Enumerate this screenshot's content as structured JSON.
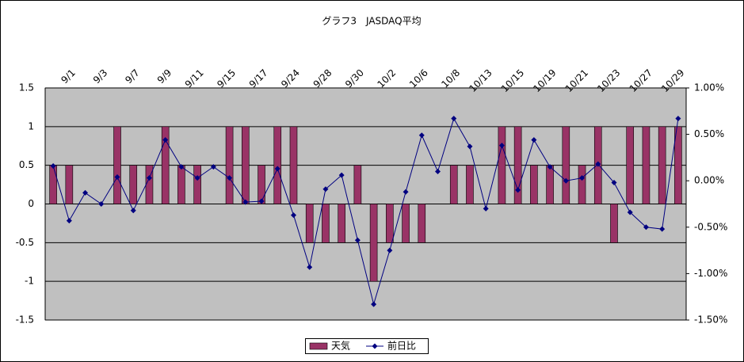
{
  "chart_data": {
    "type": "bar",
    "title": "グラフ3　JASDAQ平均",
    "categories": [
      null,
      "9/1",
      null,
      "9/3",
      null,
      "9/7",
      null,
      "9/9",
      null,
      "9/11",
      null,
      "9/15",
      null,
      "9/17",
      null,
      "9/24",
      null,
      "9/28",
      null,
      "9/30",
      null,
      "10/2",
      null,
      "10/6",
      null,
      "10/8",
      null,
      "10/13",
      null,
      "10/15",
      null,
      "10/19",
      null,
      "10/21",
      null,
      "10/23",
      null,
      "10/27",
      null,
      "10/29"
    ],
    "series": [
      {
        "name": "天気",
        "type": "bar",
        "axis": "y",
        "color": "#993366",
        "values": [
          0.5,
          0.5,
          0,
          0,
          1,
          0.5,
          0.5,
          1,
          0.5,
          0.5,
          0,
          1,
          1,
          0.5,
          1,
          1,
          -0.5,
          -0.5,
          -0.5,
          0.5,
          -1,
          -0.5,
          -0.5,
          -0.5,
          0,
          0.5,
          0.5,
          0,
          1,
          1,
          0.5,
          0.5,
          1,
          0.5,
          1,
          -0.5,
          1,
          1,
          1,
          1
        ]
      },
      {
        "name": "前日比",
        "type": "line",
        "axis": "y2",
        "color": "#000080",
        "values": [
          0.16,
          -0.43,
          -0.13,
          -0.25,
          0.04,
          -0.32,
          0.03,
          0.44,
          0.15,
          0.03,
          0.15,
          0.03,
          -0.23,
          -0.22,
          0.13,
          -0.37,
          -0.93,
          -0.09,
          0.06,
          -0.64,
          -1.33,
          -0.75,
          -0.12,
          0.49,
          0.1,
          0.67,
          0.37,
          -0.3,
          0.38,
          -0.1,
          0.44,
          0.15,
          0.0,
          0.03,
          0.18,
          -0.02,
          -0.34,
          -0.5,
          -0.52,
          0.67
        ]
      }
    ],
    "ylim": [
      -1.5,
      1.5
    ],
    "yticks": [
      1.5,
      1,
      0.5,
      0,
      -0.5,
      -1,
      -1.5
    ],
    "y2lim": [
      -1.5,
      1.0
    ],
    "y2ticks": [
      {
        "value": 1.0,
        "label": "1.00%"
      },
      {
        "value": 0.5,
        "label": "0.50%"
      },
      {
        "value": 0,
        "label": "0.00%"
      },
      {
        "value": -0.5,
        "label": "-0.50%"
      },
      {
        "value": -1.0,
        "label": "-1.00%"
      },
      {
        "value": -1.5,
        "label": "-1.50%"
      }
    ],
    "grid": true,
    "legend": "bottom"
  }
}
